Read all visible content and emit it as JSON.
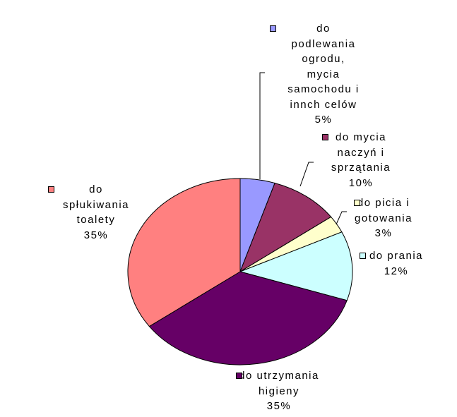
{
  "chart_data": {
    "type": "pie",
    "slices": [
      {
        "label": [
          "do",
          "podlewania",
          "ogrodu,",
          "mycia",
          "samochodu i",
          "innch celów"
        ],
        "percent_label": "5%",
        "value": 5,
        "color": "#9999FF"
      },
      {
        "label": [
          "do mycia",
          "naczyń i",
          "sprzątania"
        ],
        "percent_label": "10%",
        "value": 10,
        "color": "#993366"
      },
      {
        "label": [
          "do picia i",
          "gotowania"
        ],
        "percent_label": "3%",
        "value": 3,
        "color": "#FFFFCC"
      },
      {
        "label": [
          "do prania"
        ],
        "percent_label": "12%",
        "value": 12,
        "color": "#CCFFFF"
      },
      {
        "label": [
          "do utrzymania",
          "higieny"
        ],
        "percent_label": "35%",
        "value": 35,
        "color": "#660066"
      },
      {
        "label": [
          "do",
          "spłukiwania",
          "toalety"
        ],
        "percent_label": "35%",
        "value": 35,
        "color": "#FF8080"
      }
    ],
    "start_angle": "12 o'clock",
    "direction": "clockwise",
    "legend": "none",
    "labels": "outside, with leader lines for small slices"
  }
}
